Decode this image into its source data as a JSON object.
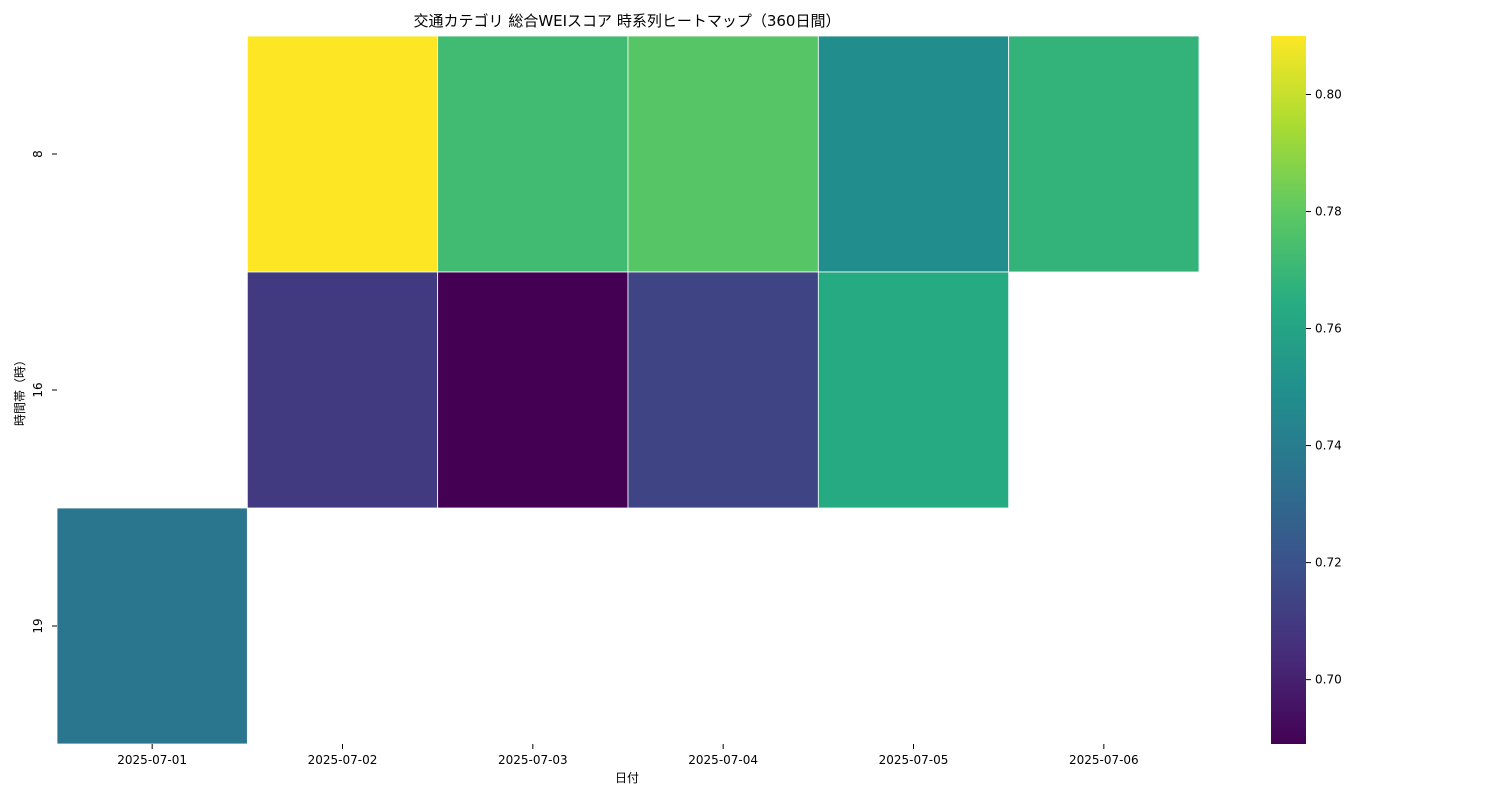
{
  "chart_data": {
    "type": "heatmap",
    "title": "交通カテゴリ 総合WEIスコア 時系列ヒートマップ（360日間）",
    "xlabel": "日付",
    "ylabel": "時間帯（時）",
    "x_categories": [
      "2025-07-01",
      "2025-07-02",
      "2025-07-03",
      "2025-07-04",
      "2025-07-05",
      "2025-07-06"
    ],
    "y_categories": [
      "8",
      "16",
      "19"
    ],
    "values": [
      [
        null,
        0.81,
        0.772,
        0.778,
        0.748,
        0.768
      ],
      [
        null,
        0.71,
        0.689,
        0.714,
        0.763,
        null
      ],
      [
        0.737,
        null,
        null,
        null,
        null,
        null
      ]
    ],
    "colormap": "viridis",
    "vmin": 0.689,
    "vmax": 0.81,
    "colorbar_ticks": [
      "0.70",
      "0.72",
      "0.74",
      "0.76",
      "0.78",
      "0.80"
    ],
    "grid": false
  }
}
